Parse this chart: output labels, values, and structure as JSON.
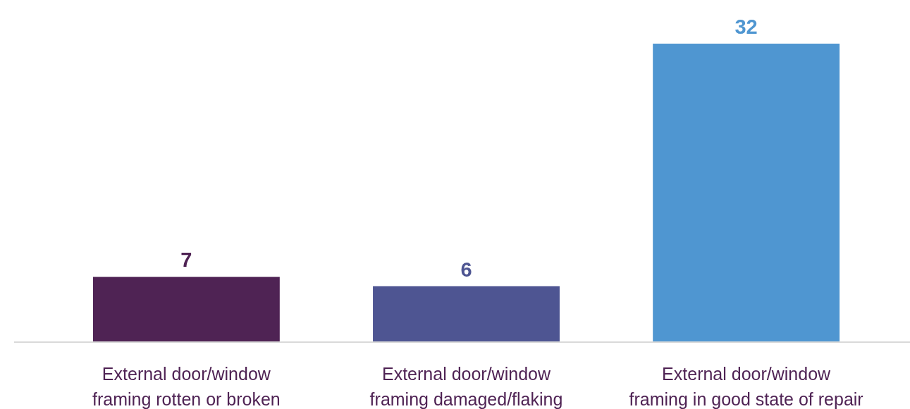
{
  "chart_data": {
    "type": "bar",
    "categories": [
      "External door/window framing rotten or broken",
      "External door/window framing damaged/flaking",
      "External door/window framing in good state of repair"
    ],
    "values": [
      7,
      6,
      32
    ],
    "colors": [
      "#4f2354",
      "#4e5592",
      "#4f96d1"
    ],
    "ylim": [
      0,
      32
    ],
    "data_labels": true,
    "tick_labels": "x"
  }
}
